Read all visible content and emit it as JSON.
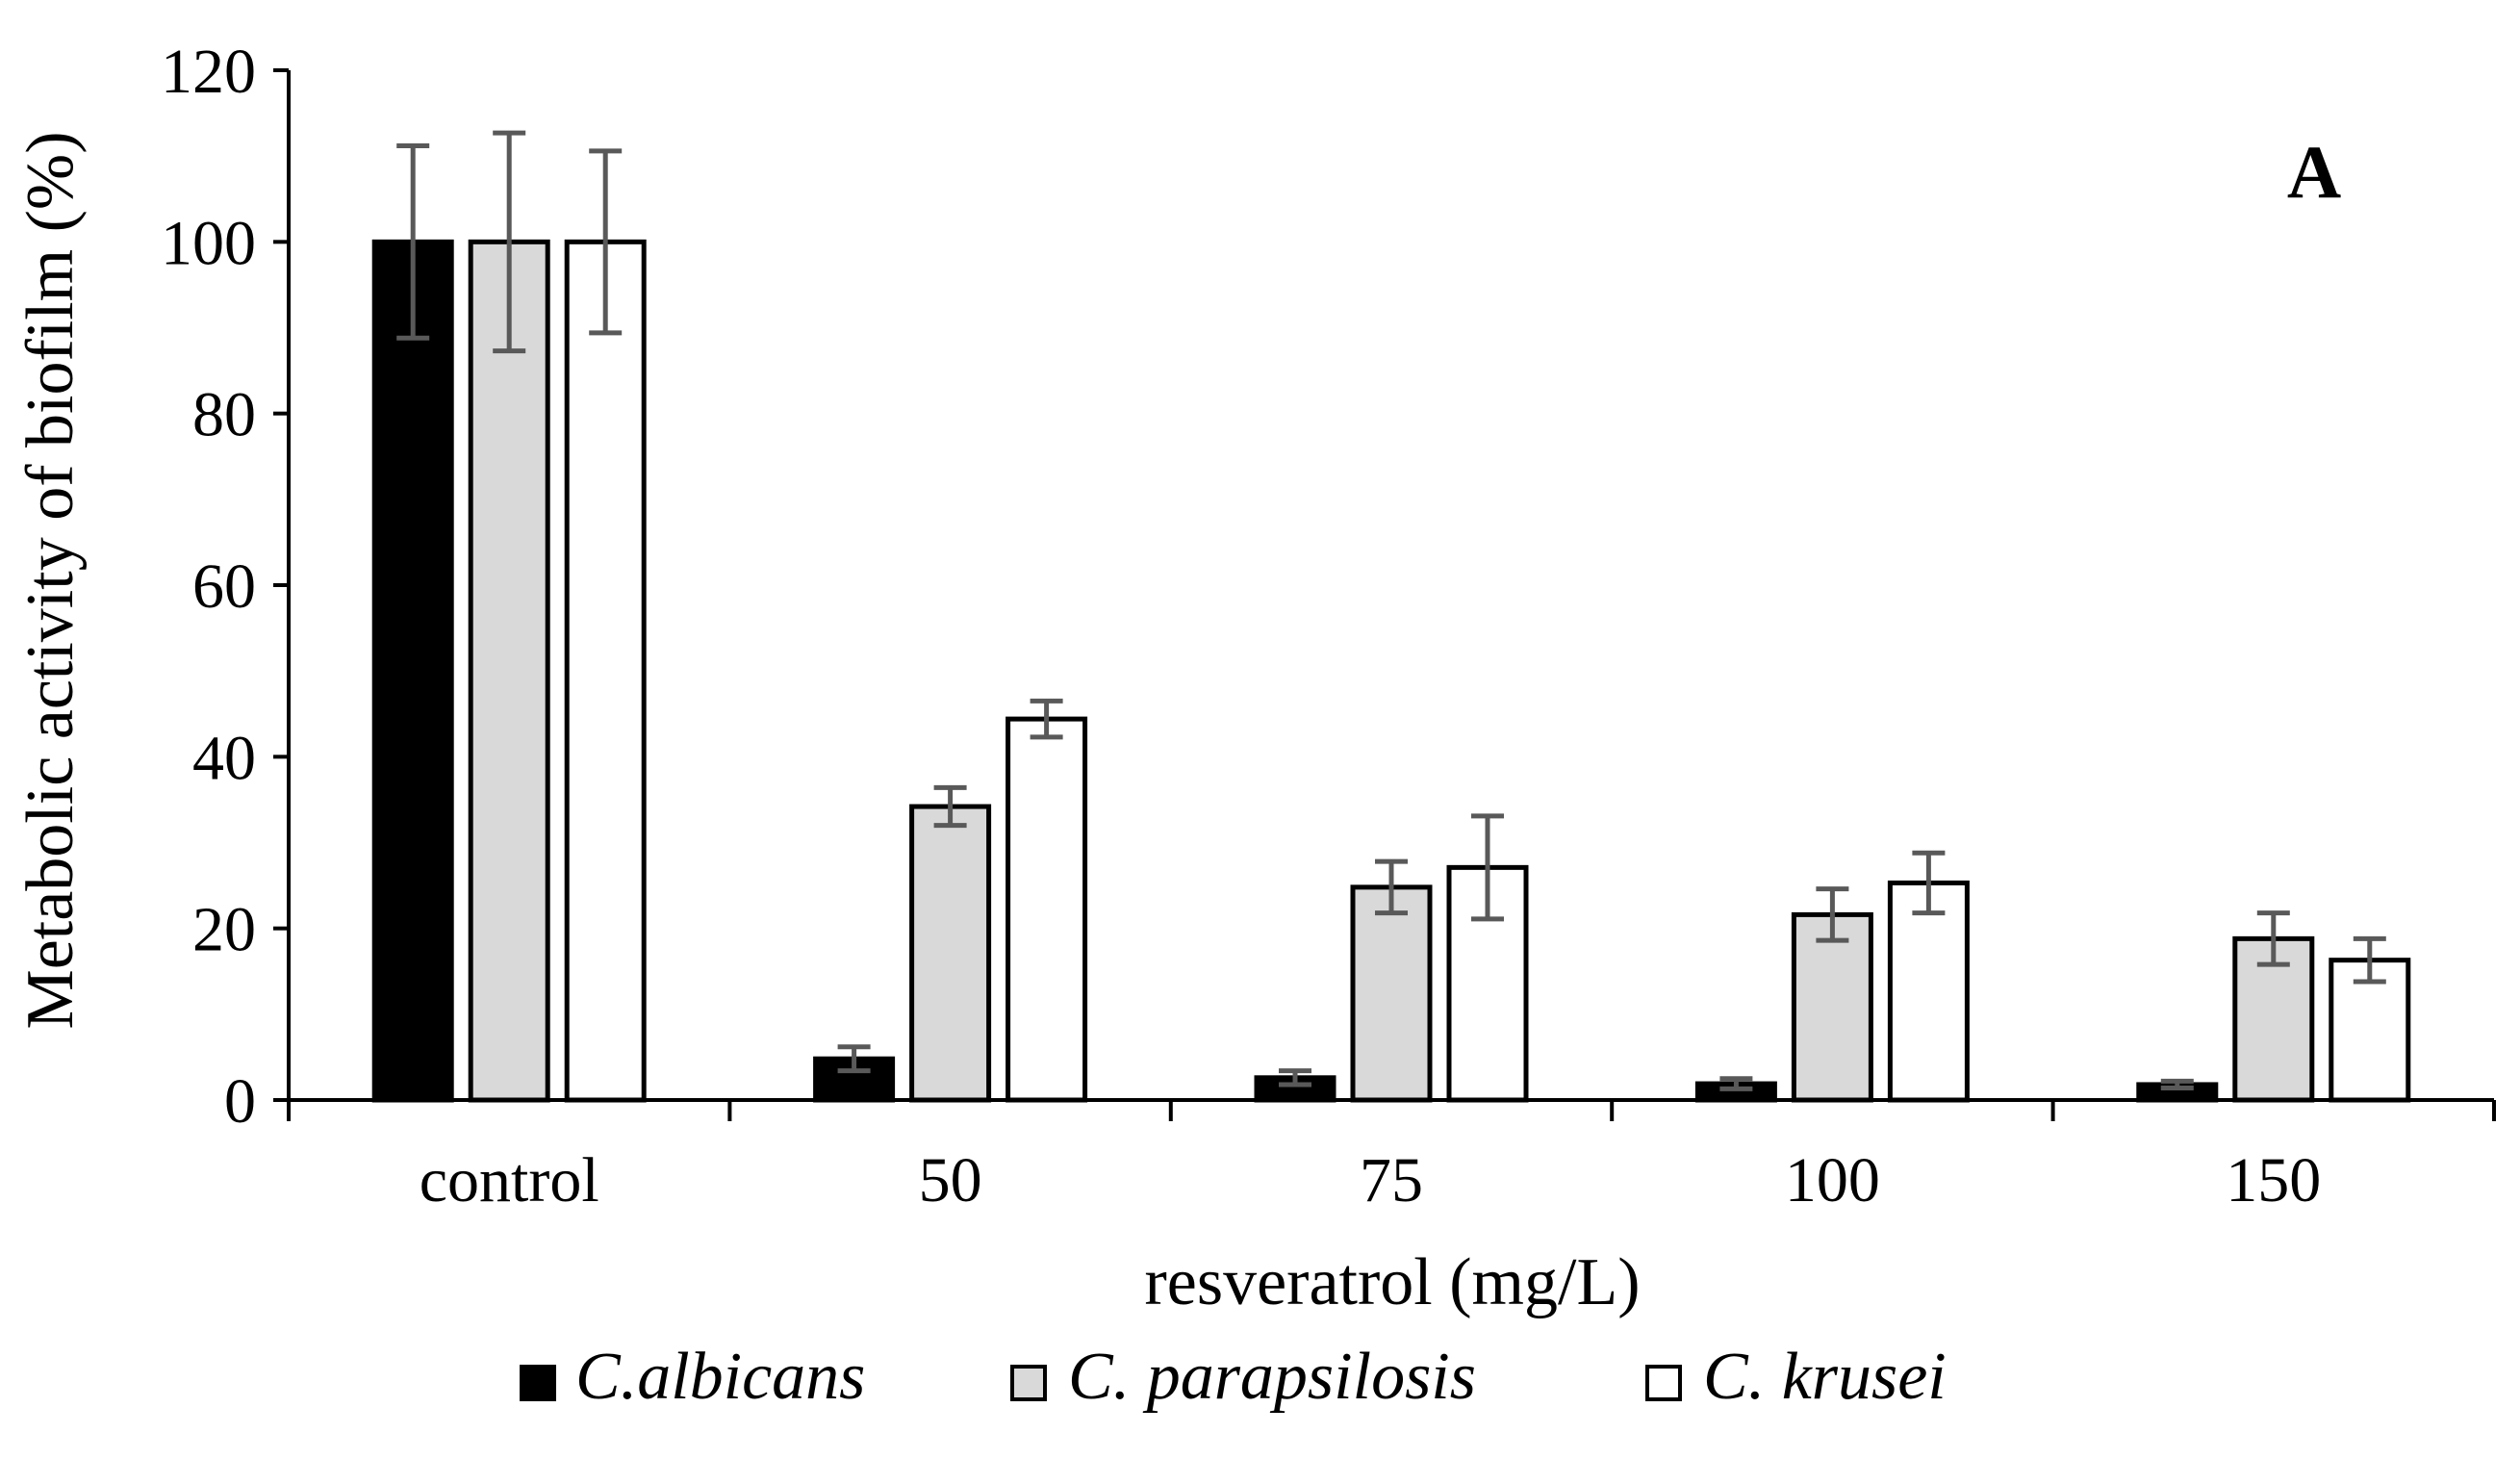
{
  "chart_data": {
    "type": "bar",
    "title": "",
    "panel_label": "A",
    "xlabel": "resveratrol (mg/L)",
    "ylabel": "Metabolic activity of biofilm (%)",
    "ylim": [
      0,
      120
    ],
    "yticks": [
      0,
      20,
      40,
      60,
      80,
      100,
      120
    ],
    "grid": false,
    "legend_position": "bottom",
    "categories": [
      "control",
      "50",
      "75",
      "100",
      "150"
    ],
    "series": [
      {
        "name": "C.albicans",
        "color": "#000000",
        "values": [
          100,
          4.8,
          2.6,
          1.9,
          1.8
        ],
        "errors": [
          11.2,
          1.4,
          0.8,
          0.6,
          0.4
        ]
      },
      {
        "name": "C. parapsilosis",
        "color": "#d9d9d9",
        "values": [
          100,
          34.2,
          24.8,
          21.6,
          18.8
        ],
        "errors": [
          12.7,
          2.2,
          3.0,
          3.0,
          3.0
        ]
      },
      {
        "name": "C. krusei",
        "color": "#ffffff",
        "values": [
          100,
          44.4,
          27.1,
          25.3,
          16.3
        ],
        "errors": [
          10.6,
          2.1,
          6.0,
          3.5,
          2.5
        ]
      }
    ]
  }
}
